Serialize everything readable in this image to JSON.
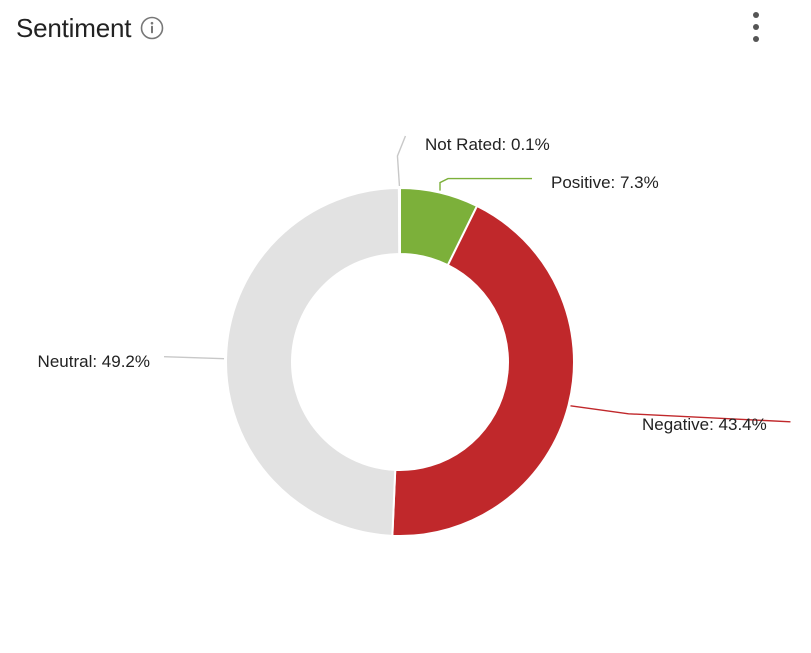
{
  "header": {
    "title": "Sentiment",
    "info_icon": "info-circle-icon",
    "menu_icon": "kebab-menu-icon"
  },
  "chart_data": {
    "type": "pie",
    "variant": "donut",
    "title": "Sentiment",
    "slices": [
      {
        "label": "Positive",
        "value": 7.3,
        "display": "Positive: 7.3%",
        "color": "#7cb03a"
      },
      {
        "label": "Negative",
        "value": 43.4,
        "display": "Negative: 43.4%",
        "color": "#c0282b"
      },
      {
        "label": "Neutral",
        "value": 49.2,
        "display": "Neutral: 49.2%",
        "color": "#e2e2e2"
      },
      {
        "label": "Not Rated",
        "value": 0.1,
        "display": "Not Rated: 0.1%",
        "color": "#cfcfcf"
      }
    ],
    "unit": "%",
    "legend": "none"
  }
}
